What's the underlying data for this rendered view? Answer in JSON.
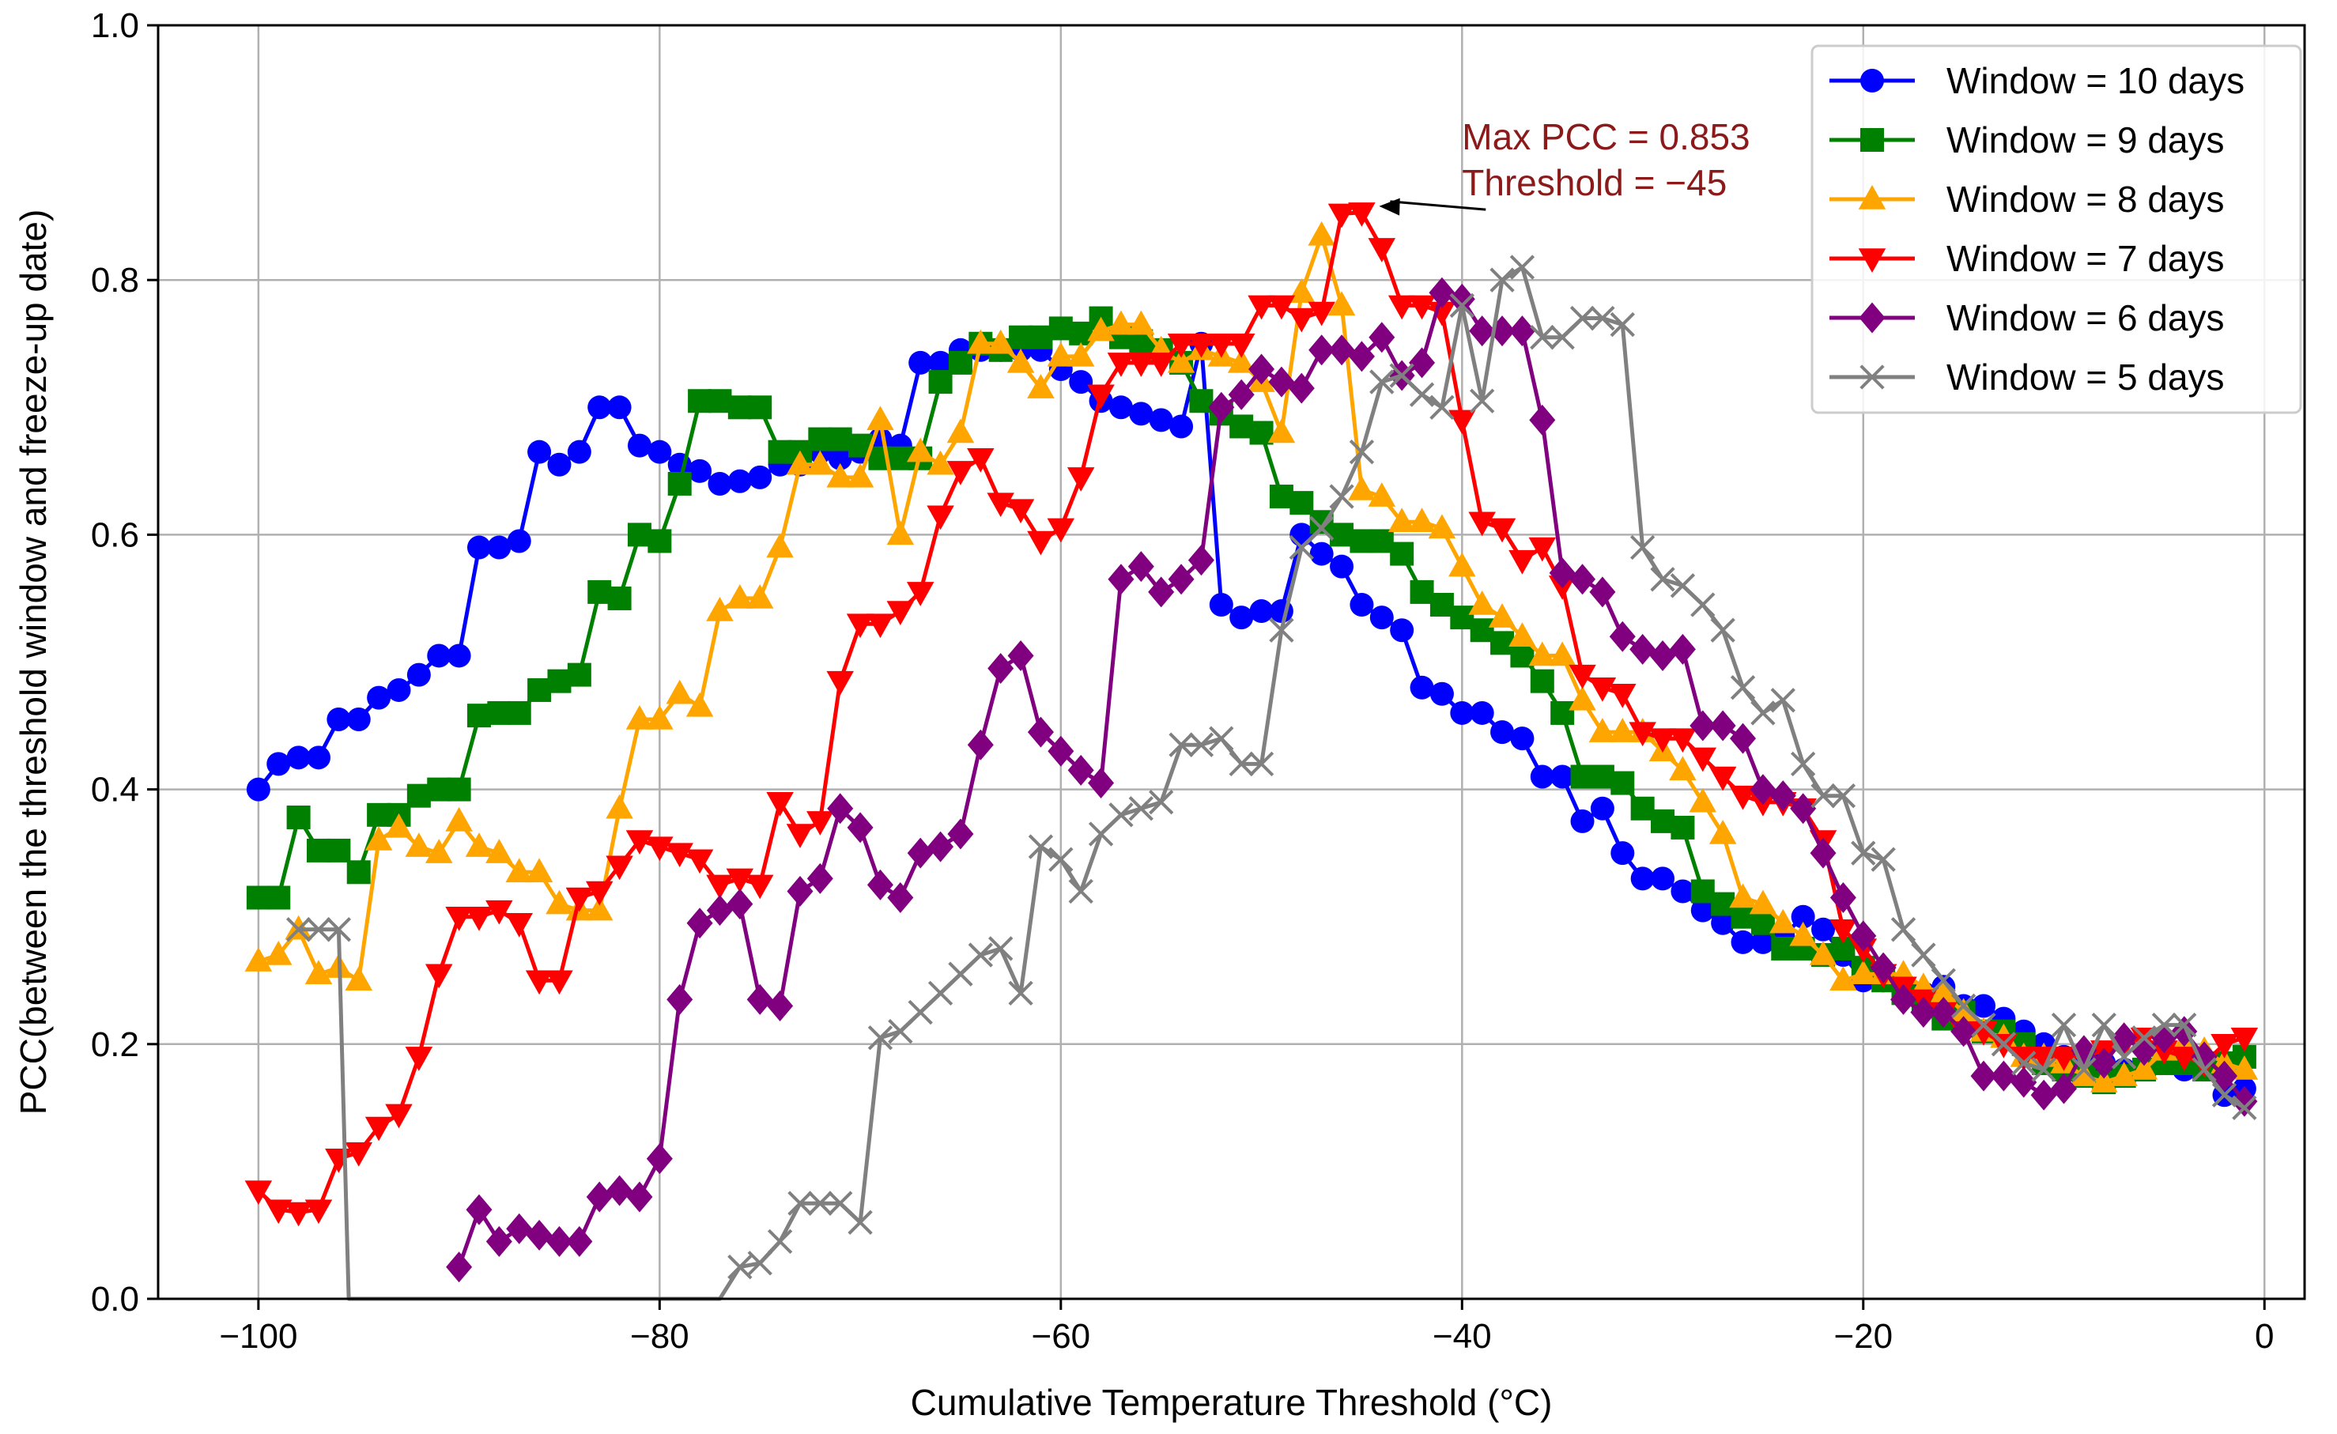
{
  "chart_data": {
    "type": "line",
    "title": "",
    "xlabel": "Cumulative Temperature Threshold (°C)",
    "ylabel": "PCC(between the threshold window and freeze-up date)",
    "xlim": [
      -105,
      2
    ],
    "ylim": [
      0,
      1
    ],
    "grid": true,
    "legend_position": "top-right",
    "xticks": [
      -100,
      -80,
      -60,
      -40,
      -20,
      0
    ],
    "xtick_labels": [
      "−100",
      "−80",
      "−60",
      "−40",
      "−20",
      "0"
    ],
    "yticks": [
      0,
      0.2,
      0.4,
      0.6,
      0.8,
      1.0
    ],
    "ytick_labels": [
      "0.0",
      "0.2",
      "0.4",
      "0.6",
      "0.8",
      "1.0"
    ],
    "annotation": {
      "lines": [
        "Max PCC = 0.853",
        "Threshold = −45"
      ],
      "point": [
        -45,
        0.853
      ],
      "text_anchor": [
        -40,
        0.9
      ],
      "color": "#8B1A1A"
    },
    "series": [
      {
        "name": "Window = 10 days",
        "color": "#0000ff",
        "marker": "circle",
        "x": [
          -100,
          -99,
          -98,
          -97,
          -96,
          -95,
          -94,
          -93,
          -92,
          -91,
          -90,
          -89,
          -88,
          -87,
          -86,
          -85,
          -84,
          -83,
          -82,
          -81,
          -80,
          -79,
          -78,
          -77,
          -76,
          -75,
          -74,
          -73,
          -72,
          -71,
          -70,
          -69,
          -68,
          -67,
          -66,
          -65,
          -64,
          -63,
          -62,
          -61,
          -60,
          -59,
          -58,
          -57,
          -56,
          -55,
          -54,
          -53,
          -52,
          -51,
          -50,
          -49,
          -48,
          -47,
          -46,
          -45,
          -44,
          -43,
          -42,
          -41,
          -40,
          -39,
          -38,
          -37,
          -36,
          -35,
          -34,
          -33,
          -32,
          -31,
          -30,
          -29,
          -28,
          -27,
          -26,
          -25,
          -24,
          -23,
          -22,
          -21,
          -20,
          -19,
          -18,
          -17,
          -16,
          -15,
          -14,
          -13,
          -12,
          -11,
          -10,
          -9,
          -8,
          -7,
          -6,
          -5,
          -4,
          -3,
          -2,
          -1
        ],
        "values": [
          0.4,
          0.42,
          0.425,
          0.425,
          0.455,
          0.455,
          0.472,
          0.478,
          0.49,
          0.505,
          0.505,
          0.59,
          0.59,
          0.595,
          0.665,
          0.655,
          0.665,
          0.7,
          0.7,
          0.67,
          0.665,
          0.655,
          0.65,
          0.64,
          0.642,
          0.645,
          0.655,
          0.655,
          0.665,
          0.66,
          0.665,
          0.675,
          0.67,
          0.735,
          0.735,
          0.745,
          0.745,
          0.745,
          0.745,
          0.745,
          0.73,
          0.72,
          0.705,
          0.7,
          0.695,
          0.69,
          0.685,
          0.75,
          0.545,
          0.535,
          0.54,
          0.54,
          0.6,
          0.585,
          0.575,
          0.545,
          0.535,
          0.525,
          0.48,
          0.475,
          0.46,
          0.46,
          0.445,
          0.44,
          0.41,
          0.41,
          0.375,
          0.385,
          0.35,
          0.33,
          0.33,
          0.32,
          0.305,
          0.295,
          0.28,
          0.28,
          0.285,
          0.3,
          0.29,
          0.27,
          0.25,
          0.25,
          0.24,
          0.24,
          0.245,
          0.23,
          0.23,
          0.22,
          0.21,
          0.2,
          0.19,
          0.19,
          0.185,
          0.18,
          0.18,
          0.19,
          0.18,
          0.185,
          0.16,
          0.165
        ]
      },
      {
        "name": "Window = 9 days",
        "color": "#008000",
        "marker": "square",
        "x": [
          -100,
          -99,
          -98,
          -97,
          -96,
          -95,
          -94,
          -93,
          -92,
          -91,
          -90,
          -89,
          -88,
          -87,
          -86,
          -85,
          -84,
          -83,
          -82,
          -81,
          -80,
          -79,
          -78,
          -77,
          -76,
          -75,
          -74,
          -73,
          -72,
          -71,
          -70,
          -69,
          -68,
          -67,
          -66,
          -65,
          -64,
          -63,
          -62,
          -61,
          -60,
          -59,
          -58,
          -57,
          -56,
          -55,
          -54,
          -53,
          -52,
          -51,
          -50,
          -49,
          -48,
          -47,
          -46,
          -45,
          -44,
          -43,
          -42,
          -41,
          -40,
          -39,
          -38,
          -37,
          -36,
          -35,
          -34,
          -33,
          -32,
          -31,
          -30,
          -29,
          -28,
          -27,
          -26,
          -25,
          -24,
          -23,
          -22,
          -21,
          -20,
          -19,
          -18,
          -17,
          -16,
          -15,
          -14,
          -13,
          -12,
          -11,
          -10,
          -9,
          -8,
          -7,
          -6,
          -5,
          -4,
          -3,
          -2,
          -1
        ],
        "values": [
          0.315,
          0.315,
          0.378,
          0.352,
          0.352,
          0.335,
          0.38,
          0.38,
          0.395,
          0.4,
          0.4,
          0.458,
          0.46,
          0.46,
          0.478,
          0.485,
          0.49,
          0.555,
          0.55,
          0.6,
          0.595,
          0.64,
          0.705,
          0.705,
          0.7,
          0.7,
          0.665,
          0.665,
          0.675,
          0.675,
          0.67,
          0.66,
          0.66,
          0.66,
          0.72,
          0.735,
          0.75,
          0.745,
          0.755,
          0.755,
          0.762,
          0.758,
          0.77,
          0.755,
          0.752,
          0.745,
          0.735,
          0.705,
          0.695,
          0.685,
          0.68,
          0.63,
          0.625,
          0.61,
          0.6,
          0.595,
          0.595,
          0.585,
          0.555,
          0.545,
          0.535,
          0.525,
          0.515,
          0.505,
          0.485,
          0.46,
          0.41,
          0.41,
          0.405,
          0.385,
          0.375,
          0.37,
          0.32,
          0.31,
          0.3,
          0.295,
          0.275,
          0.275,
          0.27,
          0.275,
          0.26,
          0.25,
          0.24,
          0.235,
          0.22,
          0.225,
          0.21,
          0.21,
          0.2,
          0.185,
          0.18,
          0.175,
          0.17,
          0.175,
          0.18,
          0.185,
          0.185,
          0.18,
          0.185,
          0.19
        ]
      },
      {
        "name": "Window = 8 days",
        "color": "#ffa500",
        "marker": "triangle-up",
        "x": [
          -100,
          -99,
          -98,
          -97,
          -96,
          -95,
          -94,
          -93,
          -92,
          -91,
          -90,
          -89,
          -88,
          -87,
          -86,
          -85,
          -84,
          -83,
          -82,
          -81,
          -80,
          -79,
          -78,
          -77,
          -76,
          -75,
          -74,
          -73,
          -72,
          -71,
          -70,
          -69,
          -68,
          -67,
          -66,
          -65,
          -64,
          -63,
          -62,
          -61,
          -60,
          -59,
          -58,
          -57,
          -56,
          -55,
          -54,
          -53,
          -52,
          -51,
          -50,
          -49,
          -48,
          -47,
          -46,
          -45,
          -44,
          -43,
          -42,
          -41,
          -40,
          -39,
          -38,
          -37,
          -36,
          -35,
          -34,
          -33,
          -32,
          -31,
          -30,
          -29,
          -28,
          -27,
          -26,
          -25,
          -24,
          -23,
          -22,
          -21,
          -20,
          -19,
          -18,
          -17,
          -16,
          -15,
          -14,
          -13,
          -12,
          -11,
          -10,
          -9,
          -8,
          -7,
          -6,
          -5,
          -4,
          -3,
          -2,
          -1
        ],
        "values": [
          0.265,
          0.27,
          0.29,
          0.255,
          0.26,
          0.25,
          0.36,
          0.37,
          0.355,
          0.35,
          0.375,
          0.355,
          0.35,
          0.335,
          0.335,
          0.31,
          0.305,
          0.305,
          0.385,
          0.455,
          0.455,
          0.475,
          0.465,
          0.54,
          0.55,
          0.55,
          0.59,
          0.655,
          0.655,
          0.645,
          0.645,
          0.69,
          0.6,
          0.665,
          0.655,
          0.68,
          0.75,
          0.75,
          0.735,
          0.715,
          0.74,
          0.74,
          0.76,
          0.765,
          0.765,
          0.745,
          0.735,
          0.745,
          0.74,
          0.735,
          0.72,
          0.68,
          0.79,
          0.835,
          0.78,
          0.635,
          0.63,
          0.61,
          0.61,
          0.605,
          0.575,
          0.545,
          0.535,
          0.52,
          0.505,
          0.505,
          0.47,
          0.445,
          0.445,
          0.445,
          0.43,
          0.415,
          0.39,
          0.365,
          0.315,
          0.31,
          0.295,
          0.285,
          0.27,
          0.25,
          0.255,
          0.255,
          0.255,
          0.245,
          0.24,
          0.225,
          0.21,
          0.205,
          0.19,
          0.19,
          0.185,
          0.175,
          0.17,
          0.175,
          0.18,
          0.195,
          0.2,
          0.195,
          0.185,
          0.18
        ]
      },
      {
        "name": "Window = 7 days",
        "color": "#ff0000",
        "marker": "triangle-down",
        "x": [
          -100,
          -99,
          -98,
          -97,
          -96,
          -95,
          -94,
          -93,
          -92,
          -91,
          -90,
          -89,
          -88,
          -87,
          -86,
          -85,
          -84,
          -83,
          -82,
          -81,
          -80,
          -79,
          -78,
          -77,
          -76,
          -75,
          -74,
          -73,
          -72,
          -71,
          -70,
          -69,
          -68,
          -67,
          -66,
          -65,
          -64,
          -63,
          -62,
          -61,
          -60,
          -59,
          -58,
          -57,
          -56,
          -55,
          -54,
          -53,
          -52,
          -51,
          -50,
          -49,
          -48,
          -47,
          -46,
          -45,
          -44,
          -43,
          -42,
          -41,
          -40,
          -39,
          -38,
          -37,
          -36,
          -35,
          -34,
          -33,
          -32,
          -31,
          -30,
          -29,
          -28,
          -27,
          -26,
          -25,
          -24,
          -23,
          -22,
          -21,
          -20,
          -19,
          -18,
          -17,
          -16,
          -15,
          -14,
          -13,
          -12,
          -11,
          -10,
          -9,
          -8,
          -7,
          -6,
          -5,
          -4,
          -3,
          -2,
          -1
        ],
        "values": [
          0.085,
          0.07,
          0.068,
          0.07,
          0.11,
          0.115,
          0.135,
          0.145,
          0.19,
          0.255,
          0.3,
          0.3,
          0.305,
          0.295,
          0.25,
          0.25,
          0.315,
          0.32,
          0.34,
          0.36,
          0.355,
          0.35,
          0.345,
          0.325,
          0.33,
          0.325,
          0.39,
          0.365,
          0.375,
          0.485,
          0.53,
          0.53,
          0.54,
          0.555,
          0.615,
          0.65,
          0.66,
          0.625,
          0.62,
          0.595,
          0.605,
          0.645,
          0.71,
          0.735,
          0.735,
          0.735,
          0.75,
          0.75,
          0.75,
          0.75,
          0.78,
          0.78,
          0.77,
          0.775,
          0.852,
          0.853,
          0.825,
          0.78,
          0.78,
          0.775,
          0.69,
          0.61,
          0.605,
          0.58,
          0.59,
          0.56,
          0.49,
          0.48,
          0.475,
          0.445,
          0.44,
          0.44,
          0.425,
          0.41,
          0.395,
          0.39,
          0.39,
          0.385,
          0.36,
          0.29,
          0.275,
          0.255,
          0.245,
          0.235,
          0.225,
          0.21,
          0.21,
          0.2,
          0.19,
          0.19,
          0.19,
          0.19,
          0.195,
          0.2,
          0.205,
          0.195,
          0.19,
          0.185,
          0.2,
          0.205
        ]
      },
      {
        "name": "Window = 6 days",
        "color": "#800080",
        "marker": "diamond",
        "x": [
          -90,
          -89,
          -88,
          -87,
          -86,
          -85,
          -84,
          -83,
          -82,
          -81,
          -80,
          -79,
          -78,
          -77,
          -76,
          -75,
          -74,
          -73,
          -72,
          -71,
          -70,
          -69,
          -68,
          -67,
          -66,
          -65,
          -64,
          -63,
          -62,
          -61,
          -60,
          -59,
          -58,
          -57,
          -56,
          -55,
          -54,
          -53,
          -52,
          -51,
          -50,
          -49,
          -48,
          -47,
          -46,
          -45,
          -44,
          -43,
          -42,
          -41,
          -40,
          -39,
          -38,
          -37,
          -36,
          -35,
          -34,
          -33,
          -32,
          -31,
          -30,
          -29,
          -28,
          -27,
          -26,
          -25,
          -24,
          -23,
          -22,
          -21,
          -20,
          -19,
          -18,
          -17,
          -16,
          -15,
          -14,
          -13,
          -12,
          -11,
          -10,
          -9,
          -8,
          -7,
          -6,
          -5,
          -4,
          -3,
          -2,
          -1
        ],
        "values": [
          0.025,
          0.07,
          0.045,
          0.055,
          0.05,
          0.045,
          0.045,
          0.08,
          0.085,
          0.08,
          0.11,
          0.235,
          0.295,
          0.305,
          0.31,
          0.235,
          0.23,
          0.32,
          0.33,
          0.385,
          0.37,
          0.325,
          0.315,
          0.35,
          0.355,
          0.365,
          0.435,
          0.495,
          0.505,
          0.445,
          0.43,
          0.415,
          0.405,
          0.565,
          0.575,
          0.555,
          0.565,
          0.58,
          0.7,
          0.71,
          0.73,
          0.72,
          0.715,
          0.745,
          0.745,
          0.74,
          0.755,
          0.725,
          0.735,
          0.79,
          0.785,
          0.76,
          0.76,
          0.76,
          0.69,
          0.57,
          0.565,
          0.555,
          0.52,
          0.51,
          0.505,
          0.51,
          0.45,
          0.45,
          0.44,
          0.4,
          0.395,
          0.385,
          0.35,
          0.315,
          0.285,
          0.26,
          0.235,
          0.225,
          0.225,
          0.21,
          0.175,
          0.175,
          0.17,
          0.16,
          0.165,
          0.195,
          0.185,
          0.205,
          0.195,
          0.205,
          0.21,
          0.19,
          0.175,
          0.155
        ]
      },
      {
        "name": "Window = 5 days",
        "color": "#808080",
        "marker": "x",
        "x": [
          -98,
          -97,
          -96,
          -95.5,
          -77,
          -76,
          -75,
          -74,
          -73,
          -72,
          -71,
          -70,
          -69,
          -68,
          -67,
          -66,
          -65,
          -64,
          -63,
          -62,
          -61,
          -60,
          -59,
          -58,
          -57,
          -56,
          -55,
          -54,
          -53,
          -52,
          -51,
          -50,
          -49,
          -48,
          -47,
          -46,
          -45,
          -44,
          -43,
          -42,
          -41,
          -40,
          -39,
          -38,
          -37,
          -36,
          -35,
          -34,
          -33,
          -32,
          -31,
          -30,
          -29,
          -28,
          -27,
          -26,
          -25,
          -24,
          -23,
          -22,
          -21,
          -20,
          -19,
          -18,
          -17,
          -16,
          -15,
          -14,
          -13,
          -12,
          -11,
          -10,
          -9,
          -8,
          -7,
          -6,
          -5,
          -4,
          -3,
          -2,
          -1
        ],
        "values": [
          0.29,
          0.29,
          0.29,
          0.0,
          0.0,
          0.025,
          0.028,
          0.045,
          0.075,
          0.075,
          0.075,
          0.06,
          0.205,
          0.21,
          0.225,
          0.24,
          0.255,
          0.27,
          0.275,
          0.24,
          0.355,
          0.345,
          0.32,
          0.365,
          0.38,
          0.385,
          0.39,
          0.435,
          0.435,
          0.44,
          0.42,
          0.42,
          0.525,
          0.59,
          0.605,
          0.63,
          0.665,
          0.72,
          0.725,
          0.71,
          0.7,
          0.78,
          0.705,
          0.8,
          0.81,
          0.755,
          0.755,
          0.77,
          0.77,
          0.765,
          0.59,
          0.565,
          0.56,
          0.545,
          0.525,
          0.48,
          0.46,
          0.47,
          0.42,
          0.395,
          0.395,
          0.35,
          0.345,
          0.29,
          0.27,
          0.25,
          0.23,
          0.215,
          0.2,
          0.185,
          0.18,
          0.215,
          0.18,
          0.215,
          0.19,
          0.205,
          0.215,
          0.215,
          0.18,
          0.16,
          0.15
        ]
      }
    ]
  }
}
